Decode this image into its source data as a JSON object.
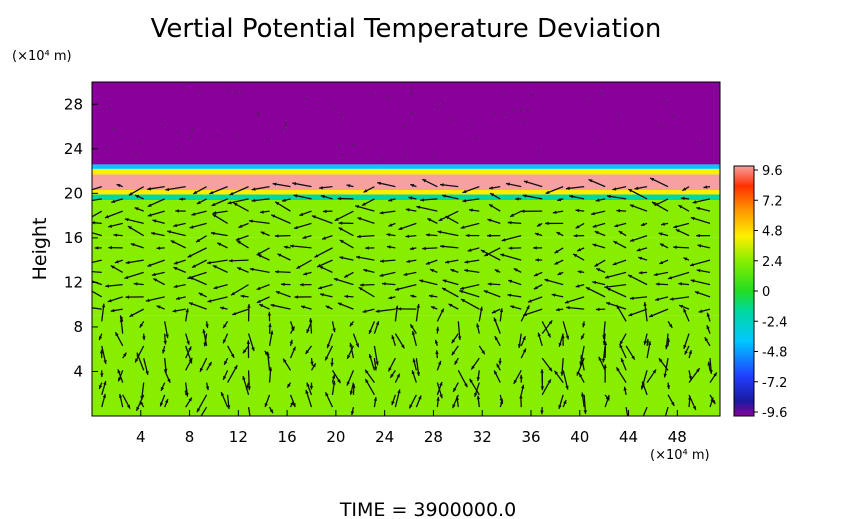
{
  "chart_data": {
    "type": "heatmap",
    "title": "Vertial Potential Temperature Deviation",
    "ylabel": "Height",
    "y_units": "(×10⁴ m)",
    "x_units": "(×10⁴ m)",
    "footer": "TIME = 3900000.0",
    "xlim": [
      0,
      51.5
    ],
    "ylim": [
      0,
      30
    ],
    "x_ticks": [
      4,
      8,
      12,
      16,
      20,
      24,
      28,
      32,
      36,
      40,
      44,
      48
    ],
    "y_ticks": [
      4,
      8,
      12,
      16,
      20,
      24,
      28
    ],
    "colorbar": {
      "range": [
        -9.6,
        9.6
      ],
      "ticks": [
        "9.6",
        "7.2",
        "4.8",
        "2.4",
        "0",
        "-2.4",
        "-4.8",
        "-7.2",
        "-9.6"
      ]
    },
    "field_layers": [
      {
        "y0": 0,
        "y1": 9,
        "value": 0.3
      },
      {
        "y0": 9,
        "y1": 16,
        "value": 1.0
      },
      {
        "y0": 16,
        "y1": 19.4,
        "value": 1.8
      },
      {
        "y0": 19.4,
        "y1": 19.9,
        "value": -3.5
      },
      {
        "y0": 19.9,
        "y1": 20.3,
        "value": 3.0
      },
      {
        "y0": 20.3,
        "y1": 21.7,
        "value": 8.2
      },
      {
        "y0": 21.7,
        "y1": 22.2,
        "value": 4.0
      },
      {
        "y0": 22.2,
        "y1": 22.6,
        "value": -5.0
      },
      {
        "y0": 22.6,
        "y1": 30,
        "value": -9.6
      }
    ]
  }
}
